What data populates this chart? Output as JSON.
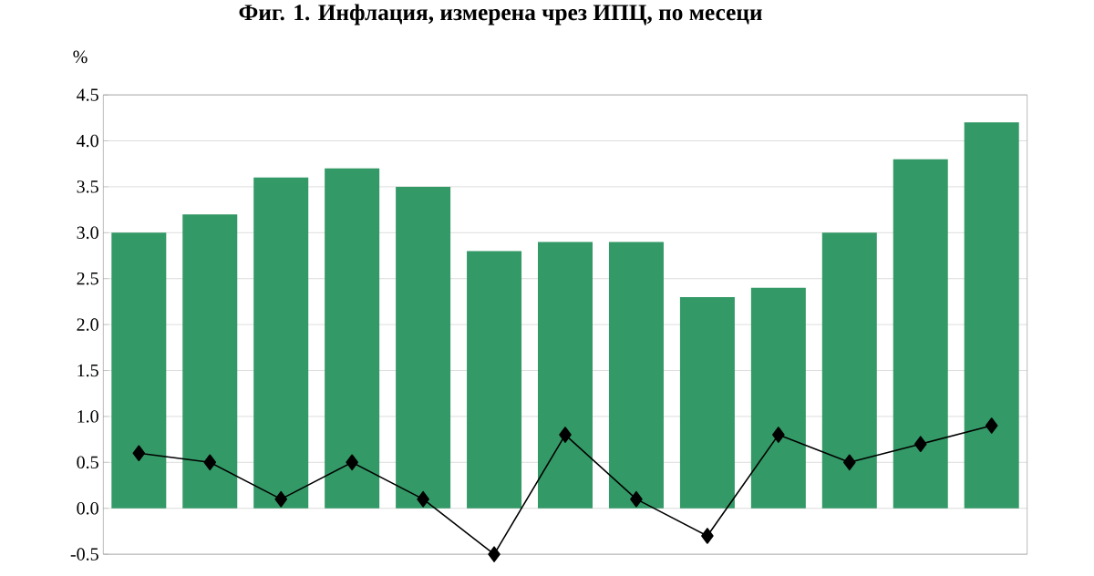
{
  "chart_data": {
    "type": "bar",
    "title": "Фиг. 1. Инфлация, измерена чрез ИПЦ, по месеци",
    "ylabel": "%",
    "categories": [
      null,
      null,
      null,
      null,
      null,
      null,
      null,
      null,
      null,
      null,
      null,
      null,
      null
    ],
    "series": [
      {
        "color": "#339966",
        "values": [
          3.0,
          3.2,
          3.6,
          3.7,
          3.5,
          2.8,
          2.9,
          2.9,
          2.3,
          2.4,
          3.0,
          3.8,
          4.2
        ]
      },
      {
        "type": "line",
        "color": "#000000",
        "marker": "diamond",
        "values": [
          0.6,
          0.5,
          0.1,
          0.5,
          0.1,
          -0.5,
          0.8,
          0.1,
          -0.3,
          0.8,
          0.5,
          0.7,
          0.9
        ]
      }
    ],
    "ylim": [
      -0.5,
      4.5
    ],
    "yticks": [
      {
        "value": -0.5,
        "label": "-0.5"
      },
      {
        "value": 0,
        "label": "0.0"
      },
      {
        "value": 0.5,
        "label": "0.5"
      },
      {
        "value": 1,
        "label": "1.0"
      },
      {
        "value": 1.5,
        "label": "1.5"
      },
      {
        "value": 2,
        "label": "2.0"
      },
      {
        "value": 2.5,
        "label": "2.5"
      },
      {
        "value": 3,
        "label": "3.0"
      },
      {
        "value": 3.5,
        "label": "3.5"
      },
      {
        "value": 4,
        "label": "4.0"
      },
      {
        "value": 4.5,
        "label": "4.5"
      }
    ],
    "grid": "y"
  }
}
